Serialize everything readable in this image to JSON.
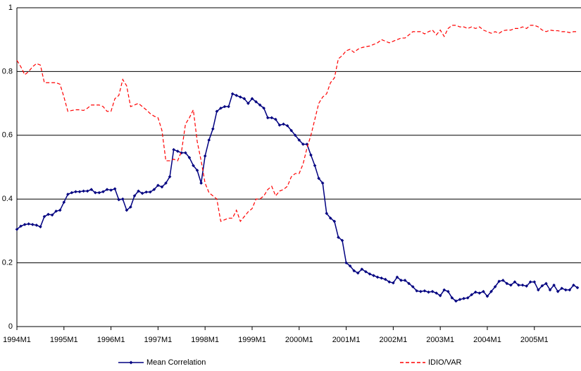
{
  "chart_data": {
    "type": "line",
    "categories": [
      "1994M1",
      null,
      null,
      null,
      null,
      null,
      null,
      null,
      null,
      null,
      null,
      null,
      "1995M1",
      null,
      null,
      null,
      null,
      null,
      null,
      null,
      null,
      null,
      null,
      null,
      "1996M1",
      null,
      null,
      null,
      null,
      null,
      null,
      null,
      null,
      null,
      null,
      null,
      "1997M1",
      null,
      null,
      null,
      null,
      null,
      null,
      null,
      null,
      null,
      null,
      null,
      "1998M1",
      null,
      null,
      null,
      null,
      null,
      null,
      null,
      null,
      null,
      null,
      null,
      "1999M1",
      null,
      null,
      null,
      null,
      null,
      null,
      null,
      null,
      null,
      null,
      null,
      "2000M1",
      null,
      null,
      null,
      null,
      null,
      null,
      null,
      null,
      null,
      null,
      null,
      "2001M1",
      null,
      null,
      null,
      null,
      null,
      null,
      null,
      null,
      null,
      null,
      null,
      "2002M1",
      null,
      null,
      null,
      null,
      null,
      null,
      null,
      null,
      null,
      null,
      null,
      "2003M1",
      null,
      null,
      null,
      null,
      null,
      null,
      null,
      null,
      null,
      null,
      null,
      "2004M1",
      null,
      null,
      null,
      null,
      null,
      null,
      null,
      null,
      null,
      null,
      null,
      "2005M1",
      null,
      null,
      null,
      null,
      null,
      null,
      null,
      null,
      null,
      null,
      null
    ],
    "series": [
      {
        "name": "Mean Correlation",
        "color": "#000080",
        "marker": "diamond",
        "dashed": false,
        "values": [
          0.305,
          0.315,
          0.32,
          0.322,
          0.32,
          0.318,
          0.313,
          0.345,
          0.352,
          0.35,
          0.362,
          0.365,
          0.39,
          0.415,
          0.42,
          0.423,
          0.423,
          0.425,
          0.425,
          0.43,
          0.42,
          0.42,
          0.423,
          0.43,
          0.428,
          0.432,
          0.398,
          0.4,
          0.365,
          0.375,
          0.41,
          0.425,
          0.418,
          0.422,
          0.422,
          0.43,
          0.443,
          0.438,
          0.45,
          0.47,
          0.555,
          0.55,
          0.545,
          0.545,
          0.53,
          0.505,
          0.49,
          0.45,
          0.535,
          0.585,
          0.62,
          0.675,
          0.685,
          0.69,
          0.69,
          0.73,
          0.725,
          0.72,
          0.715,
          0.7,
          0.715,
          0.705,
          0.695,
          0.685,
          0.655,
          0.655,
          0.65,
          0.632,
          0.635,
          0.63,
          0.615,
          0.6,
          0.585,
          0.572,
          0.572,
          0.538,
          0.505,
          0.465,
          0.45,
          0.355,
          0.34,
          0.33,
          0.28,
          0.27,
          0.2,
          0.19,
          0.175,
          0.168,
          0.18,
          0.172,
          0.165,
          0.16,
          0.155,
          0.152,
          0.148,
          0.14,
          0.137,
          0.155,
          0.145,
          0.145,
          0.135,
          0.125,
          0.112,
          0.11,
          0.112,
          0.108,
          0.11,
          0.105,
          0.097,
          0.115,
          0.11,
          0.09,
          0.08,
          0.085,
          0.088,
          0.09,
          0.1,
          0.108,
          0.105,
          0.11,
          0.095,
          0.11,
          0.125,
          0.142,
          0.145,
          0.135,
          0.13,
          0.14,
          0.13,
          0.13,
          0.127,
          0.14,
          0.14,
          0.115,
          0.128,
          0.135,
          0.115,
          0.13,
          0.11,
          0.12,
          0.115,
          0.115,
          0.13,
          0.122
        ]
      },
      {
        "name": "IDIO/VAR",
        "color": "#ff0000",
        "marker": "none",
        "dashed": true,
        "values": [
          0.835,
          0.815,
          0.79,
          0.8,
          0.815,
          0.825,
          0.82,
          0.765,
          0.765,
          0.765,
          0.765,
          0.76,
          0.72,
          0.675,
          0.678,
          0.68,
          0.68,
          0.678,
          0.685,
          0.695,
          0.695,
          0.695,
          0.69,
          0.675,
          0.675,
          0.715,
          0.725,
          0.775,
          0.755,
          0.69,
          0.695,
          0.7,
          0.69,
          0.68,
          0.668,
          0.66,
          0.655,
          0.615,
          0.52,
          0.52,
          0.525,
          0.52,
          0.55,
          0.635,
          0.655,
          0.68,
          0.58,
          0.52,
          0.45,
          0.42,
          0.41,
          0.4,
          0.33,
          0.335,
          0.34,
          0.34,
          0.365,
          0.33,
          0.345,
          0.36,
          0.37,
          0.4,
          0.4,
          0.41,
          0.43,
          0.44,
          0.41,
          0.425,
          0.43,
          0.44,
          0.47,
          0.48,
          0.48,
          0.51,
          0.56,
          0.6,
          0.65,
          0.7,
          0.72,
          0.73,
          0.765,
          0.78,
          0.84,
          0.85,
          0.865,
          0.87,
          0.86,
          0.87,
          0.875,
          0.878,
          0.88,
          0.885,
          0.89,
          0.9,
          0.895,
          0.89,
          0.895,
          0.9,
          0.905,
          0.905,
          0.915,
          0.925,
          0.925,
          0.925,
          0.918,
          0.925,
          0.93,
          0.915,
          0.93,
          0.91,
          0.935,
          0.945,
          0.945,
          0.94,
          0.94,
          0.935,
          0.94,
          0.935,
          0.94,
          0.93,
          0.925,
          0.92,
          0.925,
          0.92,
          0.928,
          0.93,
          0.93,
          0.935,
          0.935,
          0.94,
          0.935,
          0.945,
          0.945,
          0.94,
          0.93,
          0.925,
          0.93,
          0.928,
          0.928,
          0.925,
          0.925,
          0.922,
          0.925,
          0.925
        ]
      }
    ],
    "ylim": [
      0,
      1
    ],
    "yticks": [
      0,
      0.2,
      0.4,
      0.6,
      0.8,
      1
    ],
    "grid": true,
    "legend": "bottom"
  }
}
